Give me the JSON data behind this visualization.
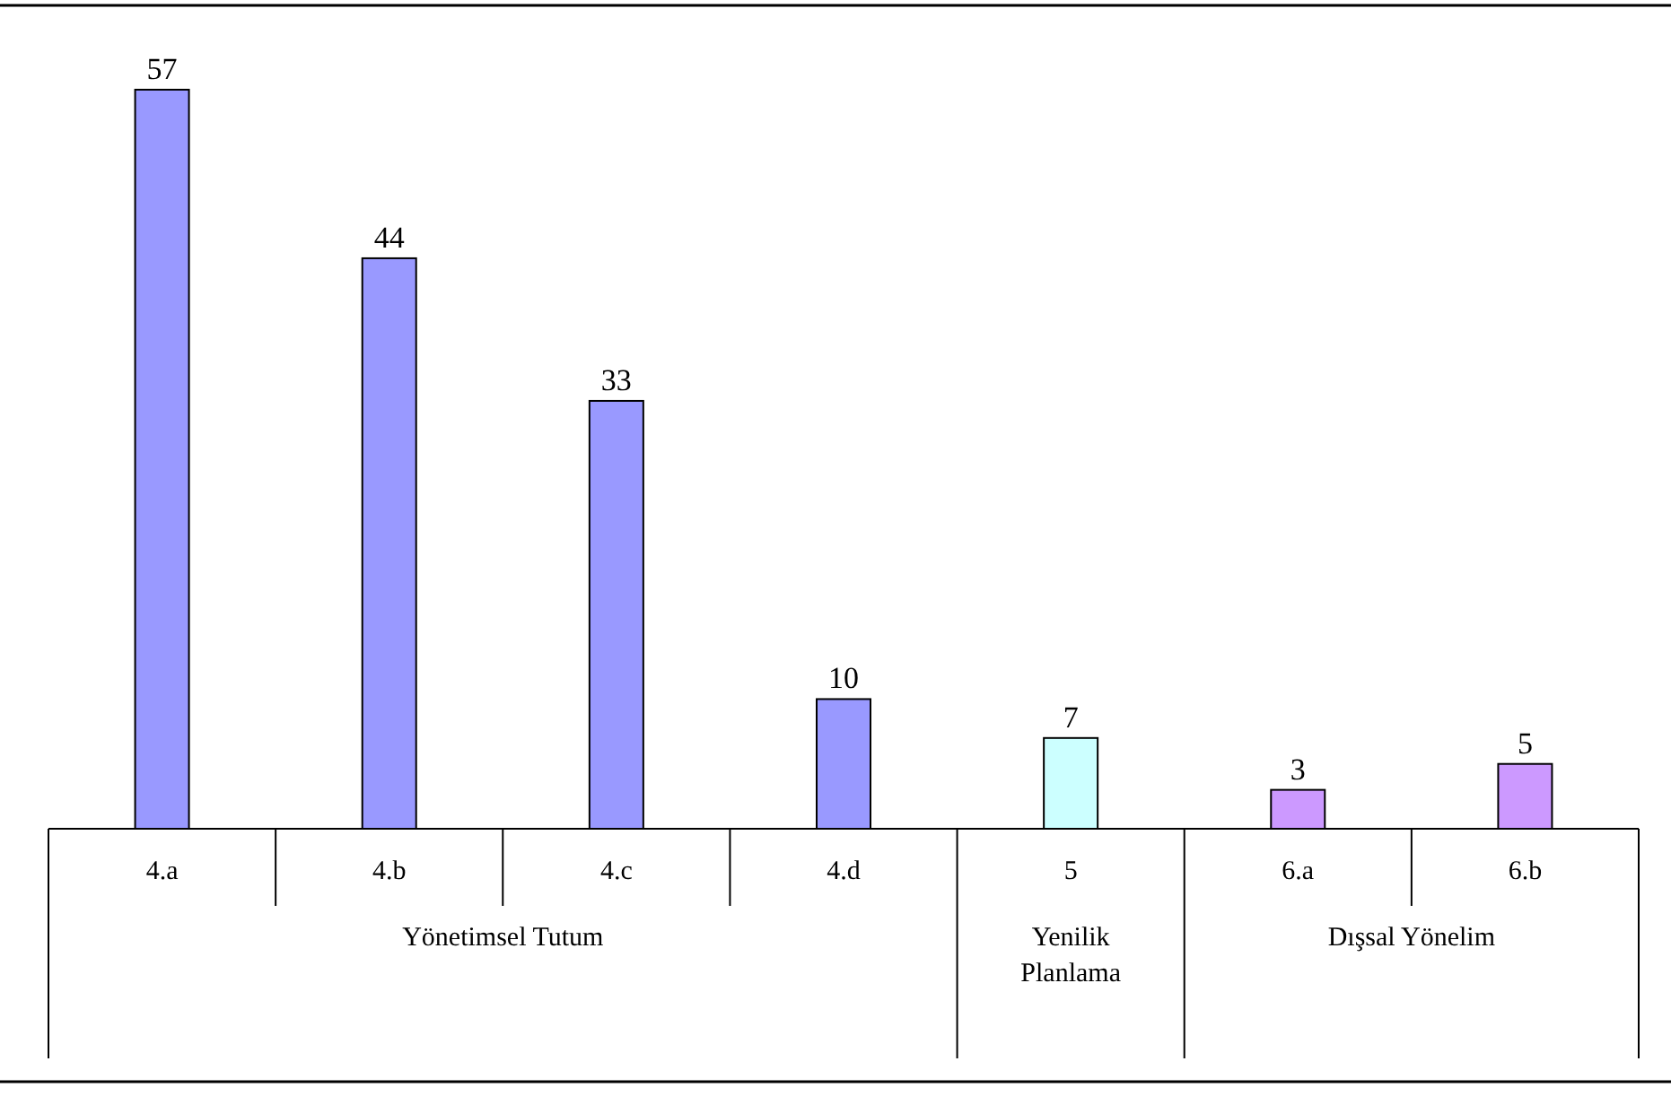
{
  "chart_data": {
    "type": "bar",
    "categories": [
      "4.a",
      "4.b",
      "4.c",
      "4.d",
      "5",
      "6.a",
      "6.b"
    ],
    "values": [
      57,
      44,
      33,
      10,
      7,
      3,
      5
    ],
    "colors": [
      "#9999ff",
      "#9999ff",
      "#9999ff",
      "#9999ff",
      "#ccffff",
      "#cc99ff",
      "#cc99ff"
    ],
    "data_labels": true,
    "annotations": [
      "Yönetimsel Tutum",
      "Yenilik Planlama",
      "Dışsal Yönelim"
    ]
  }
}
